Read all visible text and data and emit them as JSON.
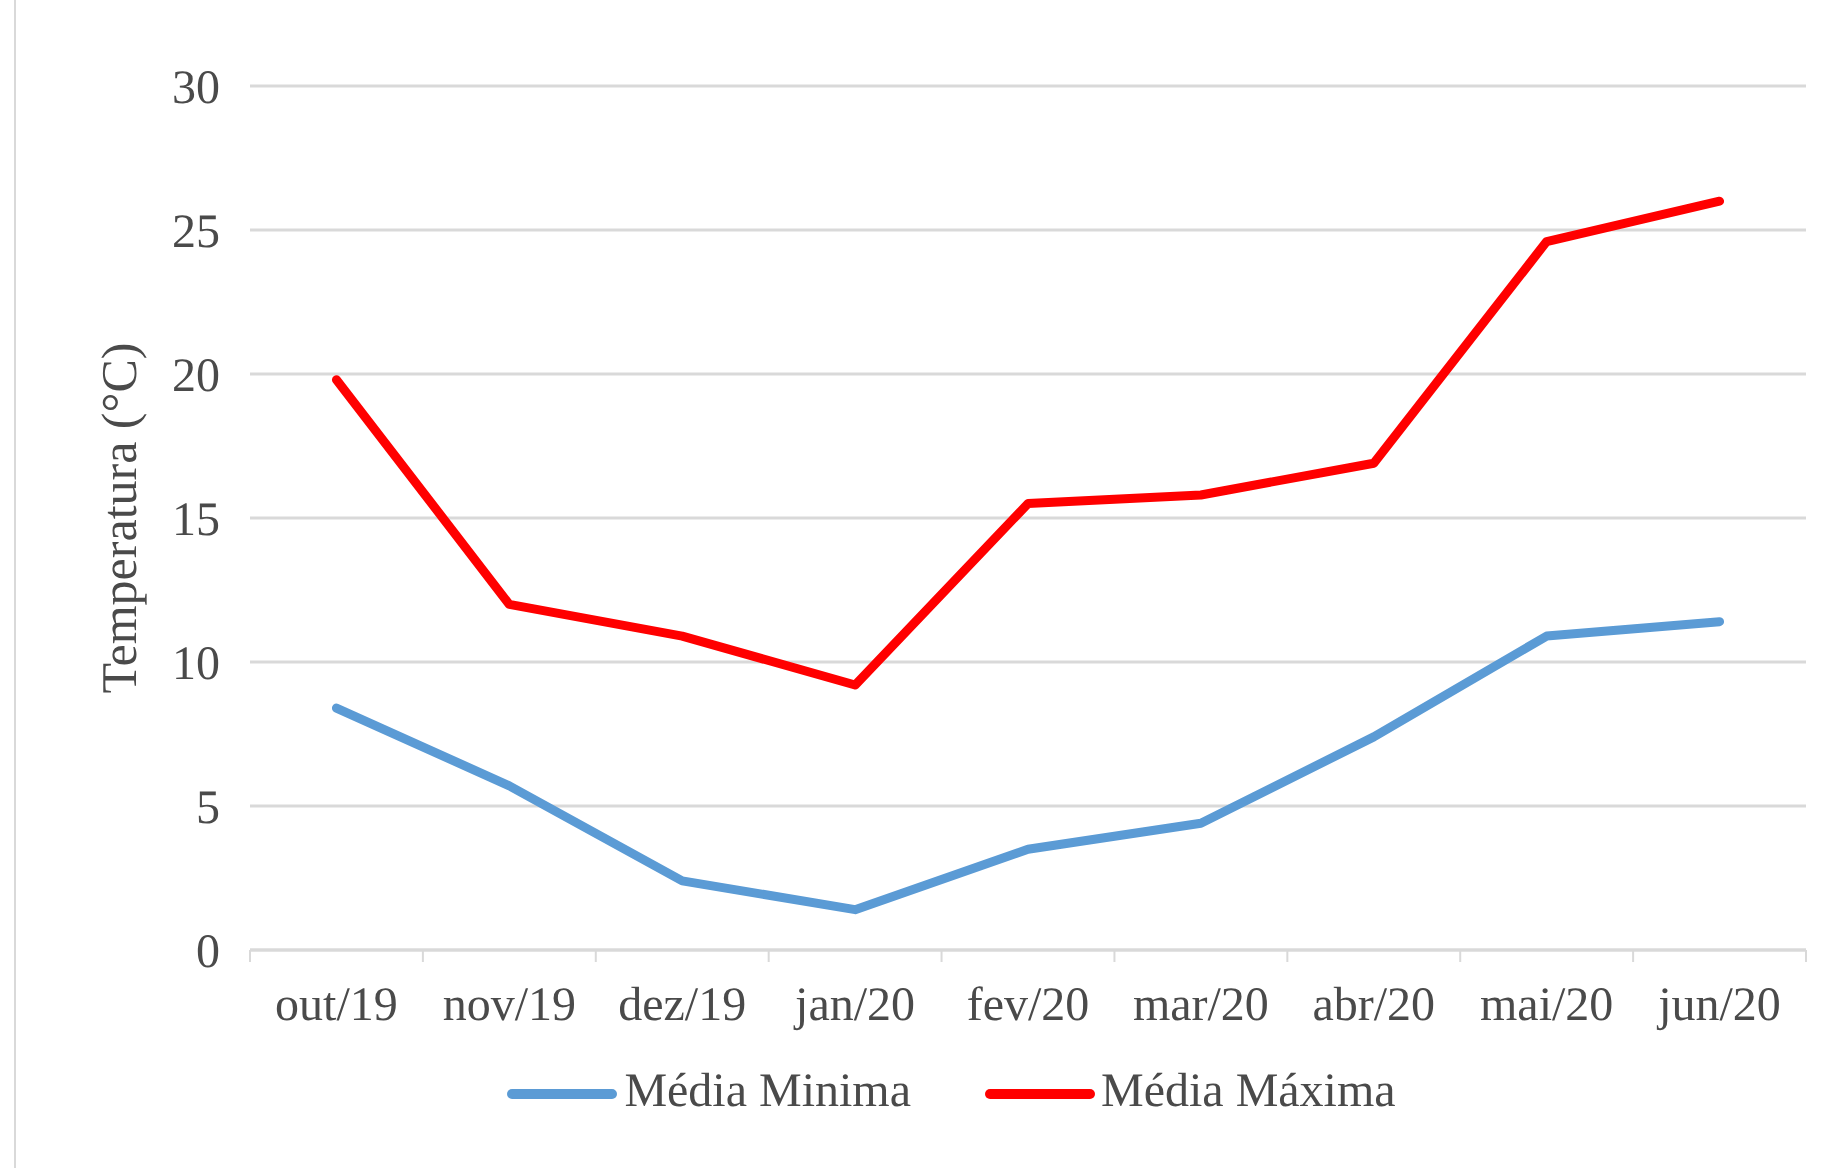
{
  "chart_data": {
    "type": "line",
    "ylabel": "Temperatura (°C)",
    "categories": [
      "out/19",
      "nov/19",
      "dez/19",
      "jan/20",
      "fev/20",
      "mar/20",
      "abr/20",
      "mai/20",
      "jun/20"
    ],
    "series": [
      {
        "name": "Média Minima",
        "color": "#5b9bd5",
        "values": [
          8.4,
          5.7,
          2.4,
          1.4,
          3.5,
          4.4,
          7.4,
          10.9,
          11.4
        ]
      },
      {
        "name": "Média Máxima",
        "color": "#ff0000",
        "values": [
          19.8,
          12.0,
          10.9,
          9.2,
          15.5,
          15.8,
          16.9,
          24.6,
          26.0
        ]
      }
    ],
    "ylim": [
      0,
      30
    ],
    "yticks": [
      0,
      5,
      10,
      15,
      20,
      25,
      30
    ],
    "grid": "y",
    "legend": "bottom",
    "line_style": "solid"
  }
}
